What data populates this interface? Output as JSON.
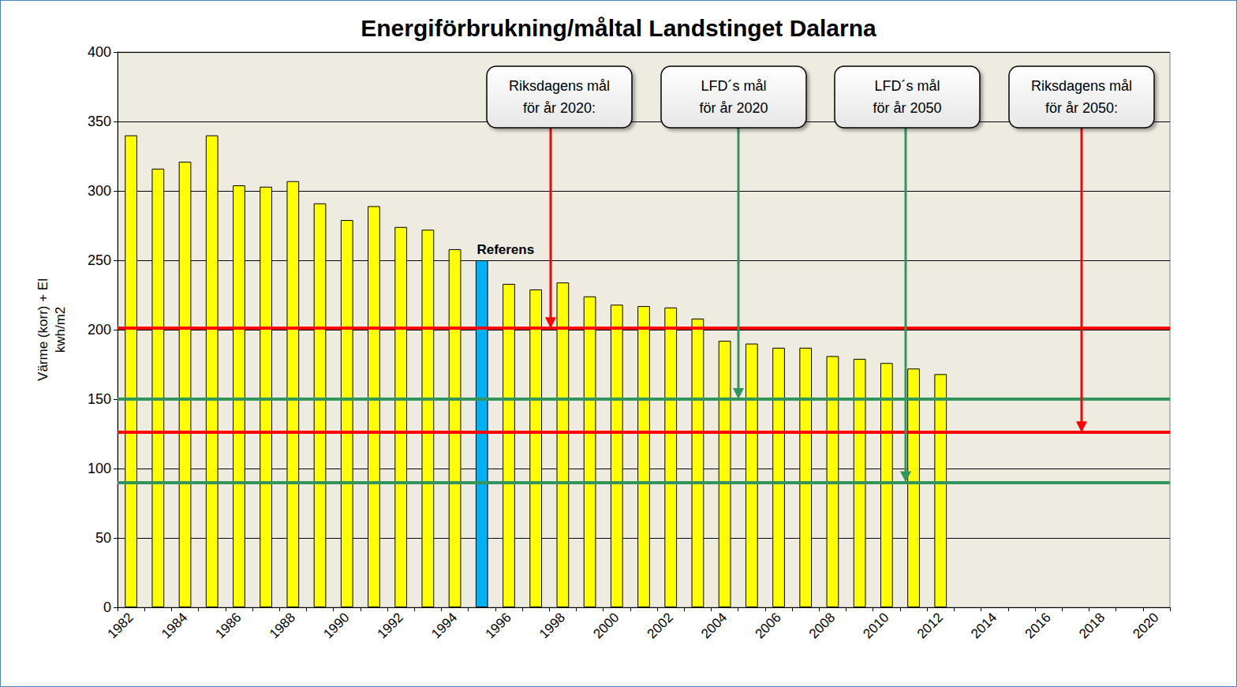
{
  "chart_data": {
    "type": "bar",
    "title": "Energiförbrukning/måltal Landstinget Dalarna",
    "y_label": "Värme (korr) + El\nkwh/m2",
    "categories": [
      "1982",
      null,
      "1984",
      null,
      "1986",
      null,
      "1988",
      null,
      "1990",
      null,
      "1992",
      null,
      "1994",
      null,
      "1996",
      null,
      "1998",
      null,
      "2000",
      null,
      "2002",
      null,
      "2004",
      null,
      "2006",
      null,
      "2008",
      null,
      "2010",
      null,
      "2012",
      null,
      "2014",
      null,
      "2016",
      null,
      "2018",
      null,
      "2020"
    ],
    "values": [
      340,
      316,
      321,
      340,
      304,
      303,
      307,
      291,
      279,
      289,
      274,
      272,
      258,
      250,
      233,
      229,
      234,
      224,
      218,
      217,
      216,
      208,
      192,
      190,
      187,
      187,
      181,
      179,
      176,
      172,
      168,
      null,
      null,
      null,
      null,
      null,
      null,
      null,
      null
    ],
    "colors": [
      "#ffff00",
      "#ffff00",
      "#ffff00",
      "#ffff00",
      "#ffff00",
      "#ffff00",
      "#ffff00",
      "#ffff00",
      "#ffff00",
      "#ffff00",
      "#ffff00",
      "#ffff00",
      "#ffff00",
      "#00b0f0",
      "#ffff00",
      "#ffff00",
      "#ffff00",
      "#ffff00",
      "#ffff00",
      "#ffff00",
      "#ffff00",
      "#ffff00",
      "#ffff00",
      "#ffff00",
      "#ffff00",
      "#ffff00",
      "#ffff00",
      "#ffff00",
      "#ffff00",
      "#ffff00",
      "#ffff00",
      "#ffff00",
      "#ffff00",
      "#ffff00",
      "#ffff00",
      "#ffff00",
      "#ffff00",
      "#ffff00",
      "#ffff00"
    ],
    "bar_annotations": [
      null,
      null,
      null,
      null,
      null,
      null,
      null,
      null,
      null,
      null,
      null,
      null,
      null,
      "Referens",
      null,
      null,
      null,
      null,
      null,
      null,
      null,
      null,
      null,
      null,
      null,
      null,
      null,
      null,
      null,
      null,
      null,
      null,
      null,
      null,
      null,
      null,
      null,
      null,
      null
    ],
    "annotations": [
      {
        "text": "Riksdagens mål\nför år 2020:",
        "line_value": 201,
        "color": "#ff0000"
      },
      {
        "text": "LFD´s mål\nför år 2020",
        "line_value": 150,
        "color": "#31955c"
      },
      {
        "text": "LFD´s mål\nför år 2050",
        "line_value": 90,
        "color": "#31955c"
      },
      {
        "text": "Riksdagens mål\nför år 2050:",
        "line_value": 126,
        "color": "#ff0000"
      }
    ],
    "ylim": [
      0,
      400
    ],
    "yticks": [
      0,
      50,
      100,
      150,
      200,
      250,
      300,
      350,
      400
    ],
    "grid": true
  }
}
